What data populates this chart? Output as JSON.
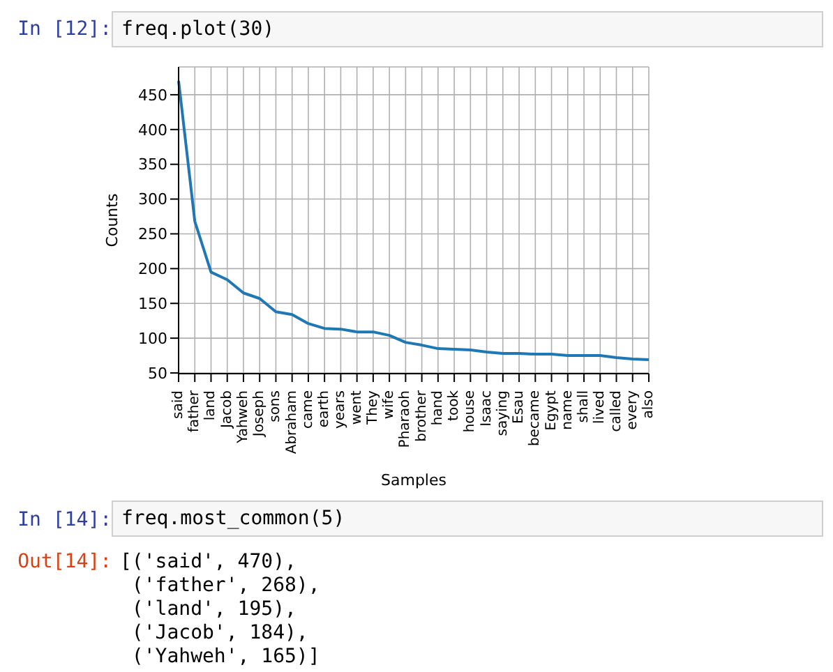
{
  "chart_data": {
    "type": "line",
    "xlabel": "Samples",
    "ylabel": "Counts",
    "categories": [
      "said",
      "father",
      "land",
      "Jacob",
      "Yahweh",
      "Joseph",
      "sons",
      "Abraham",
      "came",
      "earth",
      "years",
      "went",
      "They",
      "wife",
      "Pharaoh",
      "brother",
      "hand",
      "took",
      "house",
      "Isaac",
      "saying",
      "Esau",
      "became",
      "Egypt",
      "name",
      "shall",
      "lived",
      "called",
      "every",
      "also"
    ],
    "series": [
      {
        "color": "#1f77b4",
        "values": [
          470,
          268,
          195,
          184,
          165,
          157,
          138,
          134,
          121,
          114,
          113,
          109,
          109,
          104,
          94,
          90,
          85,
          84,
          83,
          80,
          78,
          78,
          77,
          77,
          75,
          75,
          75,
          72,
          70,
          69
        ]
      }
    ],
    "ylim": [
      49,
      490
    ],
    "yticks": [
      50,
      100,
      150,
      200,
      250,
      300,
      350,
      400,
      450
    ],
    "grid": true,
    "marker": "none",
    "line_style": "solid",
    "annotations": [
      "In [12]:",
      "freq.plot(30)",
      "In [14]:",
      "freq.most_common(5)",
      "Out[14]:",
      "[('said', 470),",
      " ('father', 268),",
      " ('land', 195),",
      " ('Jacob', 184),",
      " ('Yahweh', 165)]"
    ]
  }
}
